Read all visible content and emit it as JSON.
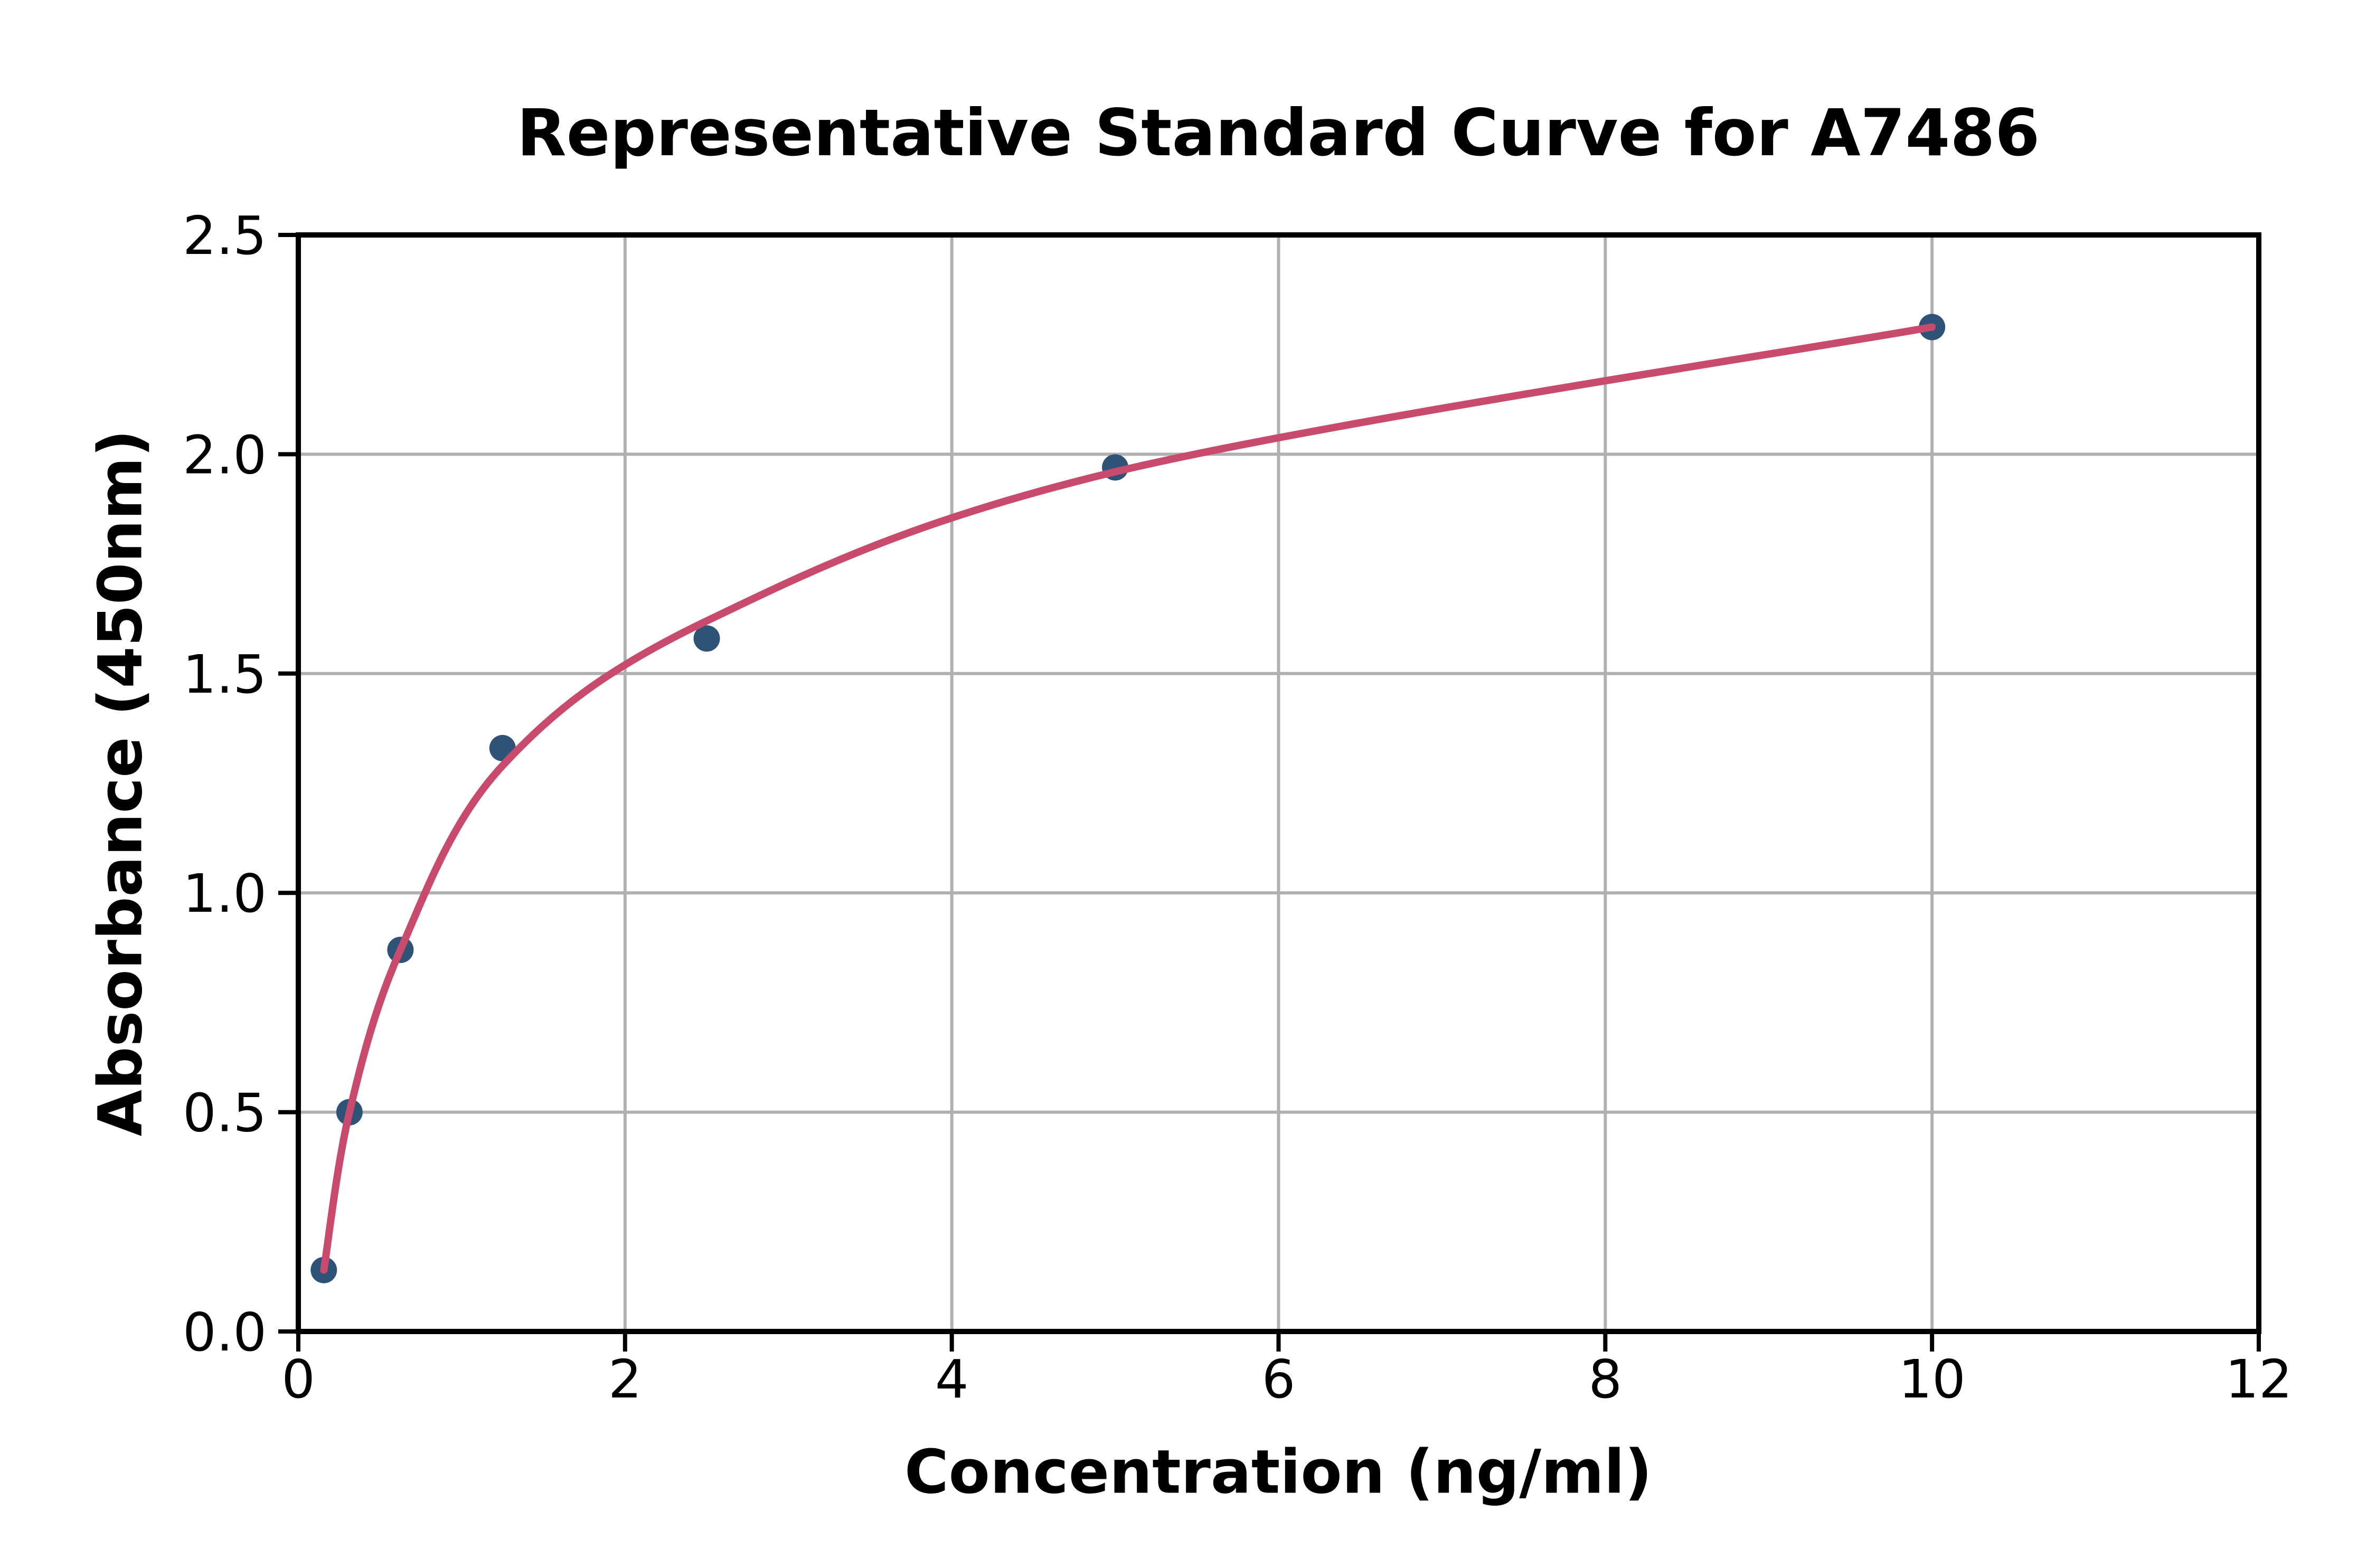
{
  "chart_data": {
    "type": "scatter",
    "title": "Representative Standard Curve for A7486",
    "xlabel": "Concentration (ng/ml)",
    "ylabel": "Absorbance (450nm)",
    "xlim": [
      0,
      12
    ],
    "ylim": [
      0,
      2.5
    ],
    "x_ticks": [
      0,
      2,
      4,
      6,
      8,
      10,
      12
    ],
    "x_tick_labels": [
      "0",
      "2",
      "4",
      "6",
      "8",
      "10",
      "12"
    ],
    "y_ticks": [
      0.0,
      0.5,
      1.0,
      1.5,
      2.0,
      2.5
    ],
    "y_tick_labels": [
      "0.0",
      "0.5",
      "1.0",
      "1.5",
      "2.0",
      "2.5"
    ],
    "grid": true,
    "legend_position": "none",
    "series": [
      {
        "name": "standard-points",
        "type": "scatter",
        "x": [
          0.156,
          0.313,
          0.625,
          1.25,
          2.5,
          5,
          10
        ],
        "y": [
          0.14,
          0.5,
          0.87,
          1.33,
          1.58,
          1.97,
          2.29
        ]
      },
      {
        "name": "fitted-curve",
        "type": "line",
        "x": [
          0.156,
          0.313,
          0.625,
          1.25,
          2.5,
          5,
          10
        ],
        "y": [
          0.14,
          0.5,
          0.87,
          1.29,
          1.62,
          1.96,
          2.29
        ]
      }
    ],
    "colors": {
      "marker": "#2E5377",
      "curve": "#C84B6E",
      "grid": "#B0B0B0",
      "axis": "#000000",
      "background": "#FFFFFF"
    }
  }
}
